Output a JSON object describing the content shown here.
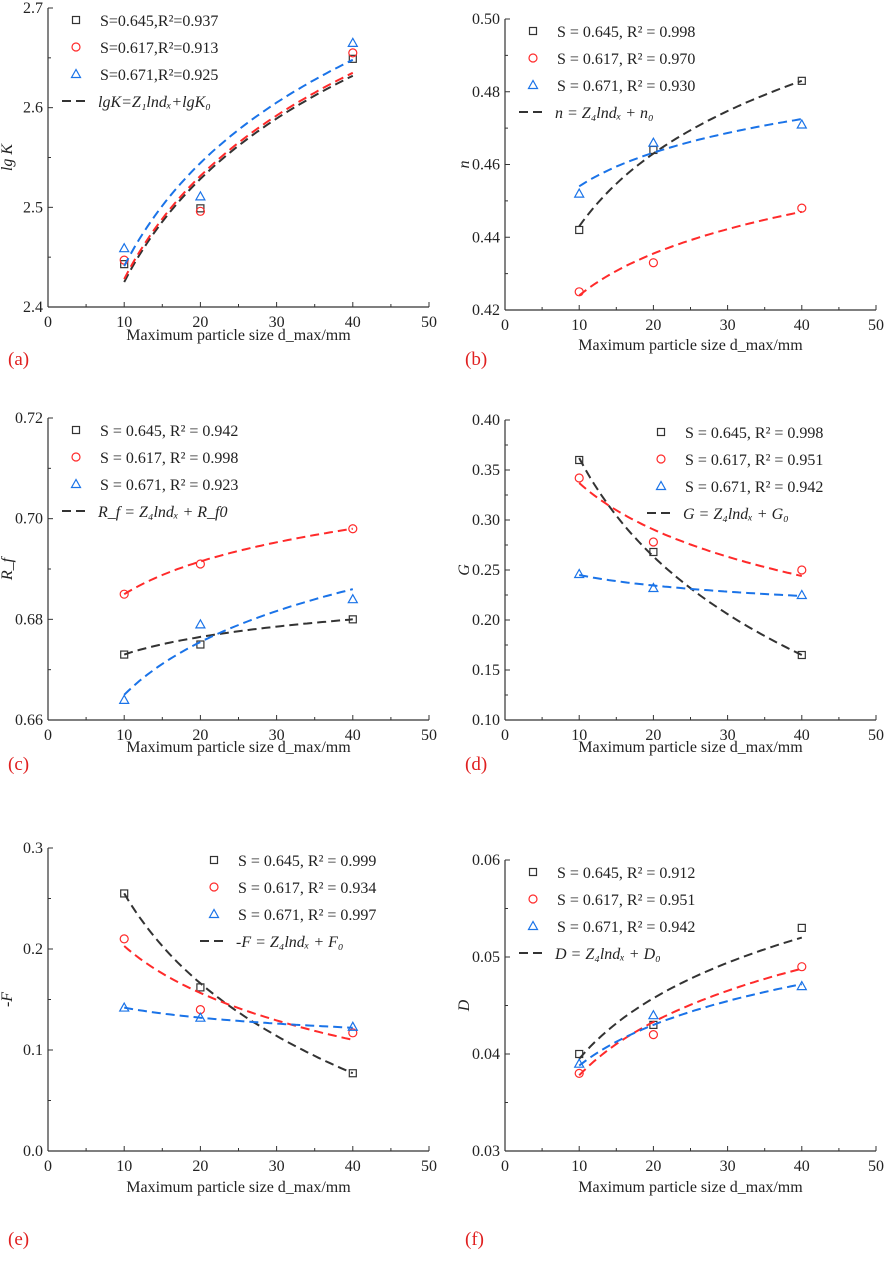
{
  "colors": {
    "black": "#333333",
    "red": "#ff2a2a",
    "blue": "#1a73e8",
    "label": "#e02020"
  },
  "chart_data": [
    {
      "type": "scatter",
      "panel_label": "(a)",
      "ylabel": "lg K",
      "xlabel": "Maximum particle size d_max/mm",
      "xlim": [
        0,
        50
      ],
      "xticks": [
        0,
        10,
        20,
        30,
        40,
        50
      ],
      "ylim": [
        2.4,
        2.7
      ],
      "yticks": [
        "2.4",
        "2.5",
        "2.6",
        "2.7"
      ],
      "legend": "top-left",
      "fit_label": "lgK=Z₁lndₓ+lgK₀",
      "x": [
        10,
        20,
        40
      ],
      "series": [
        {
          "name": "S=0.645,R²=0.937",
          "marker": "square",
          "color": "black",
          "values": [
            2.443,
            2.499,
            2.649
          ],
          "fit_ends": [
            2.425,
            2.632
          ]
        },
        {
          "name": "S=0.617,R²=0.913",
          "marker": "circle",
          "color": "red",
          "values": [
            2.447,
            2.496,
            2.655
          ],
          "fit_ends": [
            2.428,
            2.635
          ]
        },
        {
          "name": "S=0.671,R²=0.925",
          "marker": "triangle",
          "color": "blue",
          "values": [
            2.459,
            2.511,
            2.665
          ],
          "fit_ends": [
            2.441,
            2.648
          ]
        }
      ]
    },
    {
      "type": "scatter",
      "panel_label": "(b)",
      "ylabel": "n",
      "xlabel": "Maximum particle size d_max/mm",
      "xlim": [
        0,
        50
      ],
      "xticks": [
        0,
        10,
        20,
        30,
        40,
        50
      ],
      "ylim": [
        0.42,
        0.5
      ],
      "yticks": [
        "0.42",
        "0.44",
        "0.46",
        "0.48",
        "0.50"
      ],
      "legend": "top-left",
      "fit_label": "n = Z₄lndₓ + n₀",
      "x": [
        10,
        20,
        40
      ],
      "series": [
        {
          "name": "S = 0.645, R² = 0.998",
          "marker": "square",
          "color": "black",
          "values": [
            0.442,
            0.464,
            0.483
          ],
          "fit_ends": [
            0.443,
            0.483
          ]
        },
        {
          "name": "S = 0.617, R² = 0.970",
          "marker": "circle",
          "color": "red",
          "values": [
            0.425,
            0.433,
            0.448
          ],
          "fit_ends": [
            0.424,
            0.447
          ]
        },
        {
          "name": "S = 0.671, R² = 0.930",
          "marker": "triangle",
          "color": "blue",
          "values": [
            0.452,
            0.466,
            0.471
          ],
          "fit_ends": [
            0.454,
            0.4725
          ]
        }
      ]
    },
    {
      "type": "scatter",
      "panel_label": "(c)",
      "ylabel": "R_f",
      "xlabel": "Maximum particle size d_max/mm",
      "xlim": [
        0,
        50
      ],
      "xticks": [
        0,
        10,
        20,
        30,
        40,
        50
      ],
      "ylim": [
        0.66,
        0.72
      ],
      "yticks": [
        "0.66",
        "0.68",
        "0.70",
        "0.72"
      ],
      "legend": "top-left",
      "fit_label": "R_f = Z₄lndₓ + R_f0",
      "x": [
        10,
        20,
        40
      ],
      "series": [
        {
          "name": "S = 0.645, R² = 0.942",
          "marker": "square",
          "color": "black",
          "values": [
            0.673,
            0.675,
            0.68
          ],
          "fit_ends": [
            0.673,
            0.68
          ]
        },
        {
          "name": "S = 0.617, R² = 0.998",
          "marker": "circle",
          "color": "red",
          "values": [
            0.685,
            0.691,
            0.698
          ],
          "fit_ends": [
            0.685,
            0.698
          ]
        },
        {
          "name": "S = 0.671, R² = 0.923",
          "marker": "triangle",
          "color": "blue",
          "values": [
            0.664,
            0.679,
            0.684
          ],
          "fit_ends": [
            0.665,
            0.686
          ]
        }
      ]
    },
    {
      "type": "scatter",
      "panel_label": "(d)",
      "ylabel": "G",
      "xlabel": "Maximum particle size d_max/mm",
      "xlim": [
        0,
        50
      ],
      "xticks": [
        0,
        10,
        20,
        30,
        40,
        50
      ],
      "ylim": [
        0.1,
        0.4
      ],
      "yticks": [
        "0.10",
        "0.15",
        "0.20",
        "0.25",
        "0.30",
        "0.35",
        "0.40"
      ],
      "legend": "top-right",
      "fit_label": "G = Z₄lndₓ + G₀",
      "x": [
        10,
        20,
        40
      ],
      "series": [
        {
          "name": "S = 0.645, R² = 0.998",
          "marker": "square",
          "color": "black",
          "values": [
            0.36,
            0.268,
            0.165
          ],
          "fit_ends": [
            0.362,
            0.165
          ]
        },
        {
          "name": "S = 0.617, R² = 0.951",
          "marker": "circle",
          "color": "red",
          "values": [
            0.342,
            0.278,
            0.25
          ],
          "fit_ends": [
            0.337,
            0.244
          ]
        },
        {
          "name": "S = 0.671, R² = 0.942",
          "marker": "triangle",
          "color": "blue",
          "values": [
            0.246,
            0.232,
            0.225
          ],
          "fit_ends": [
            0.245,
            0.224
          ]
        }
      ]
    },
    {
      "type": "scatter",
      "panel_label": "(e)",
      "ylabel": "-F",
      "xlabel": "Maximum particle size d_max/mm",
      "xlim": [
        0,
        50
      ],
      "xticks": [
        0,
        10,
        20,
        30,
        40,
        50
      ],
      "ylim": [
        0.0,
        0.3
      ],
      "yticks": [
        "0.0",
        "0.1",
        "0.2",
        "0.3"
      ],
      "legend": "top-right",
      "fit_label": "-F = Z₄lndₓ + F₀",
      "x": [
        10,
        20,
        40
      ],
      "series": [
        {
          "name": "S = 0.645, R² = 0.999",
          "marker": "square",
          "color": "black",
          "values": [
            0.255,
            0.162,
            0.077
          ],
          "fit_ends": [
            0.255,
            0.077
          ]
        },
        {
          "name": "S = 0.617, R² = 0.934",
          "marker": "circle",
          "color": "red",
          "values": [
            0.21,
            0.14,
            0.117
          ],
          "fit_ends": [
            0.203,
            0.11
          ]
        },
        {
          "name": "S = 0.671, R² = 0.997",
          "marker": "triangle",
          "color": "blue",
          "values": [
            0.142,
            0.132,
            0.123
          ],
          "fit_ends": [
            0.142,
            0.122
          ]
        }
      ]
    },
    {
      "type": "scatter",
      "panel_label": "(f)",
      "ylabel": "D",
      "xlabel": "Maximum particle size d_max/mm",
      "xlim": [
        0,
        50
      ],
      "xticks": [
        0,
        10,
        20,
        30,
        40,
        50
      ],
      "ylim": [
        0.03,
        0.06
      ],
      "yticks": [
        "0.03",
        "0.04",
        "0.05",
        "0.06"
      ],
      "legend": "top-left",
      "fit_label": "D = Z₄lndₓ + D₀",
      "x": [
        10,
        20,
        40
      ],
      "series": [
        {
          "name": "S = 0.645, R² = 0.912",
          "marker": "square",
          "color": "black",
          "values": [
            0.04,
            0.043,
            0.053
          ],
          "fit_ends": [
            0.0395,
            0.052
          ]
        },
        {
          "name": "S = 0.617, R² = 0.951",
          "marker": "circle",
          "color": "red",
          "values": [
            0.038,
            0.042,
            0.049
          ],
          "fit_ends": [
            0.0378,
            0.0488
          ]
        },
        {
          "name": "S = 0.671, R² = 0.942",
          "marker": "triangle",
          "color": "blue",
          "values": [
            0.039,
            0.044,
            0.047
          ],
          "fit_ends": [
            0.0388,
            0.0472
          ]
        }
      ]
    }
  ]
}
